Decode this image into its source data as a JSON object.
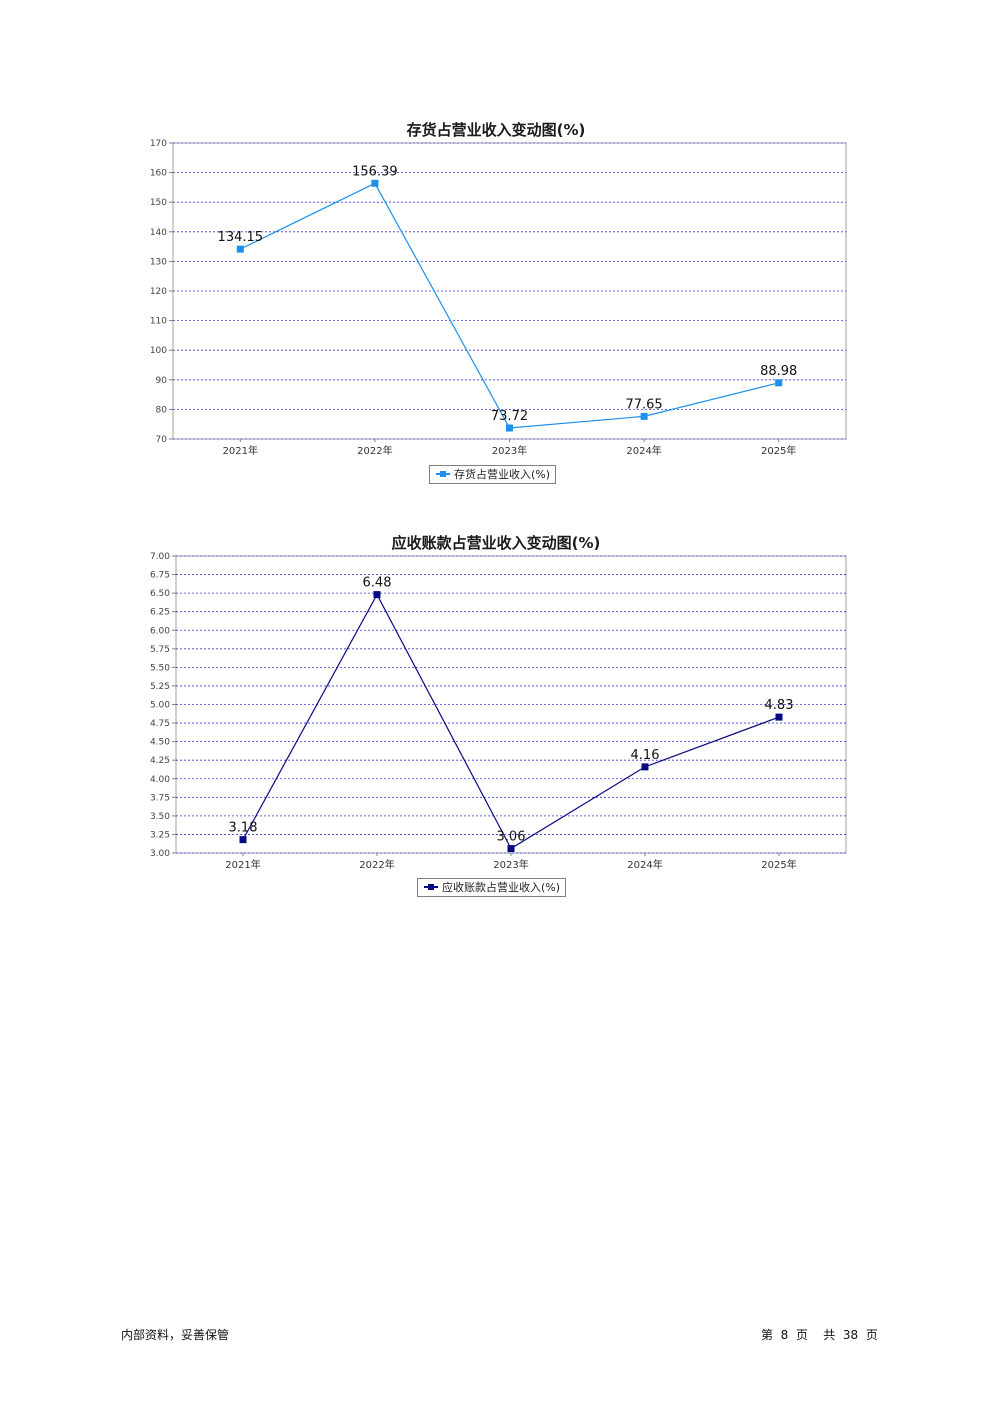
{
  "chart_data": [
    {
      "type": "line",
      "title": "存货占营业收入变动图(%)",
      "categories": [
        "2021年",
        "2022年",
        "2023年",
        "2024年",
        "2025年"
      ],
      "series": [
        {
          "name": "存货占营业收入(%)",
          "values": [
            134.15,
            156.39,
            73.72,
            77.65,
            88.98
          ],
          "color": "#1e90e8"
        }
      ],
      "data_labels": [
        "134.15",
        "156.39",
        "73.72",
        "77.65",
        "88.98"
      ],
      "ylim": [
        70,
        170
      ],
      "yticks": [
        70,
        80,
        90,
        100,
        110,
        120,
        130,
        140,
        150,
        160,
        170
      ],
      "ytick_labels": [
        "70",
        "80",
        "90",
        "100",
        "110",
        "120",
        "130",
        "140",
        "150",
        "160",
        "170"
      ],
      "grid": true,
      "legend": "bottom-center"
    },
    {
      "type": "line",
      "title": "应收账款占营业收入变动图(%)",
      "categories": [
        "2021年",
        "2022年",
        "2023年",
        "2024年",
        "2025年"
      ],
      "series": [
        {
          "name": "应收账款占营业收入(%)",
          "values": [
            3.18,
            6.48,
            3.06,
            4.16,
            4.83
          ],
          "color": "#0a0a80"
        }
      ],
      "data_labels": [
        "3.18",
        "6.48",
        "3.06",
        "4.16",
        "4.83"
      ],
      "ylim": [
        3.0,
        7.0
      ],
      "yticks": [
        3.0,
        3.25,
        3.5,
        3.75,
        4.0,
        4.25,
        4.5,
        4.75,
        5.0,
        5.25,
        5.5,
        5.75,
        6.0,
        6.25,
        6.5,
        6.75,
        7.0
      ],
      "ytick_labels": [
        "3.00",
        "3.25",
        "3.50",
        "3.75",
        "4.00",
        "4.25",
        "4.50",
        "4.75",
        "5.00",
        "5.25",
        "5.50",
        "5.75",
        "6.00",
        "6.25",
        "6.50",
        "6.75",
        "7.00"
      ],
      "grid": true,
      "legend": "bottom-center"
    }
  ],
  "footer": {
    "left": "内部资料，妥善保管",
    "page_prefix": "第",
    "page_number": "8",
    "page_word": "页",
    "total_prefix": "共",
    "total_pages": "38",
    "total_word": "页"
  }
}
